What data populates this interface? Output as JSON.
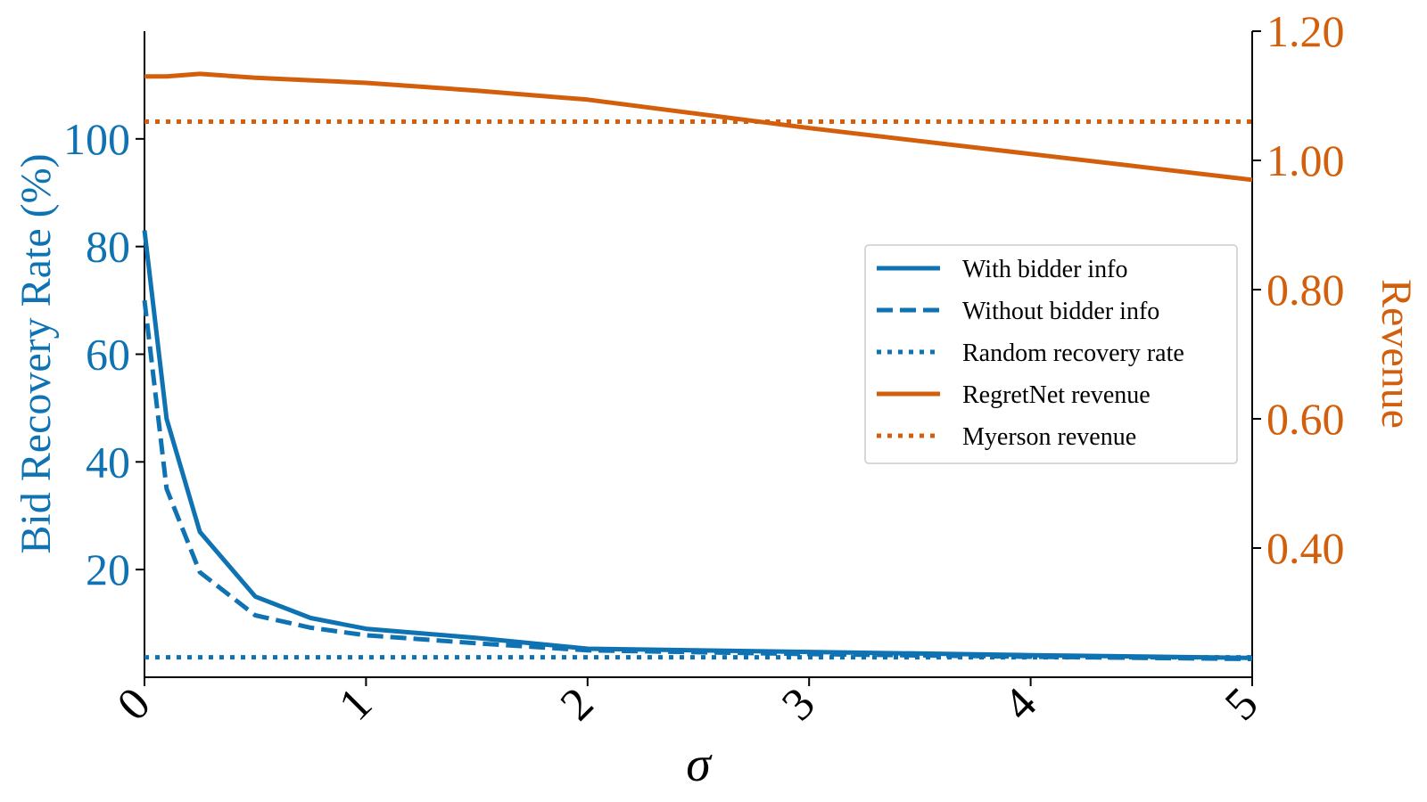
{
  "colors": {
    "blue": "#0e72b3",
    "orange": "#d35f0c",
    "axis": "#000000"
  },
  "chart_data": {
    "type": "line",
    "xlabel": "σ",
    "ylabel_left": "Bid Recovery Rate (%)",
    "ylabel_right": "Revenue",
    "xlim": [
      0,
      5
    ],
    "ylim_left": [
      0,
      120
    ],
    "ylim_right": [
      0.2,
      1.2
    ],
    "x_ticks": [
      0,
      1,
      2,
      3,
      4,
      5
    ],
    "x_tick_labels": [
      "0",
      "1",
      "2",
      "3",
      "4",
      "5"
    ],
    "y_left_ticks": [
      20,
      40,
      60,
      80,
      100
    ],
    "y_left_tick_labels": [
      "20",
      "40",
      "60",
      "80",
      "100"
    ],
    "y_right_ticks": [
      0.4,
      0.6,
      0.8,
      1.0,
      1.2
    ],
    "y_right_tick_labels": [
      "0.40",
      "0.60",
      "0.80",
      "1.00",
      "1.20"
    ],
    "legend_position": "center-right",
    "grid": false,
    "series": [
      {
        "name": "With bidder info",
        "axis": "left",
        "color": "#0e72b3",
        "style": "solid",
        "x": [
          0,
          0.1,
          0.25,
          0.5,
          0.75,
          1,
          1.5,
          2,
          3,
          4,
          5
        ],
        "values": [
          83,
          48,
          27,
          15,
          11,
          9,
          7.3,
          5.3,
          4.7,
          4.1,
          3.6
        ]
      },
      {
        "name": "Without bidder info",
        "axis": "left",
        "color": "#0e72b3",
        "style": "dashed",
        "x": [
          0,
          0.1,
          0.25,
          0.5,
          0.75,
          1,
          1.5,
          2,
          3,
          4,
          5
        ],
        "values": [
          70,
          35,
          19.5,
          11.5,
          9.2,
          7.8,
          6.3,
          5,
          4.3,
          3.8,
          3.4
        ]
      },
      {
        "name": "Random recovery rate",
        "axis": "left",
        "color": "#0e72b3",
        "style": "dotted",
        "x": [
          0,
          5
        ],
        "values": [
          3.7,
          3.7
        ]
      },
      {
        "name": "RegretNet revenue",
        "axis": "right",
        "color": "#d35f0c",
        "style": "solid",
        "x": [
          0,
          0.1,
          0.25,
          0.5,
          0.75,
          1,
          1.5,
          2,
          2.5,
          3,
          3.5,
          4,
          4.5,
          5
        ],
        "values": [
          1.13,
          1.13,
          1.134,
          1.128,
          1.124,
          1.12,
          1.108,
          1.094,
          1.072,
          1.05,
          1.03,
          1.01,
          0.99,
          0.97
        ]
      },
      {
        "name": "Myerson revenue",
        "axis": "right",
        "color": "#d35f0c",
        "style": "dotted",
        "x": [
          0,
          5
        ],
        "values": [
          1.06,
          1.06
        ]
      }
    ]
  }
}
